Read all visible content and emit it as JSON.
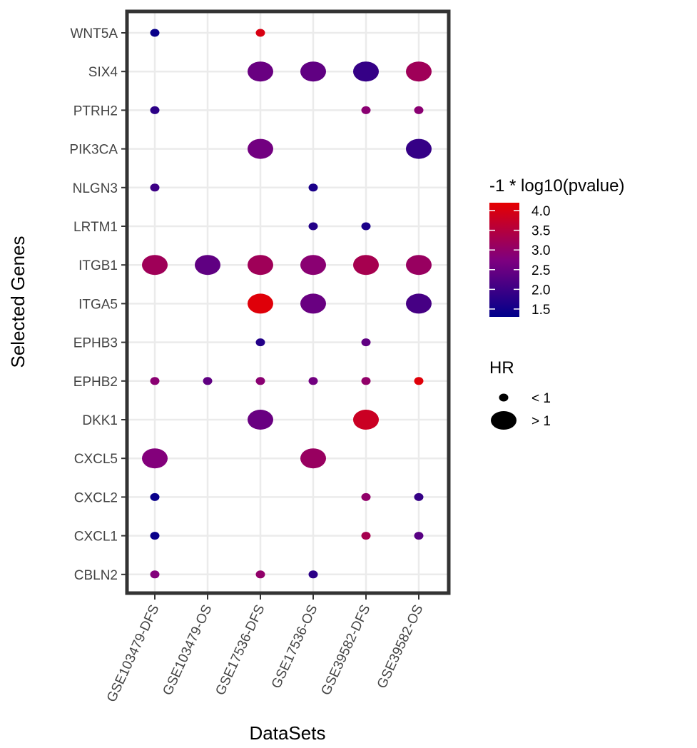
{
  "chart_data": {
    "type": "scatter",
    "subtype": "dot-plot",
    "xlabel": "DataSets",
    "ylabel": "Selected Genes",
    "datasets": [
      "GSE103479-DFS",
      "GSE103479-OS",
      "GSE17536-DFS",
      "GSE17536-OS",
      "GSE39582-DFS",
      "GSE39582-OS"
    ],
    "genes": [
      "WNT5A",
      "SIX4",
      "PTRH2",
      "PIK3CA",
      "NLGN3",
      "LRTM1",
      "ITGB1",
      "ITGA5",
      "EPHB3",
      "EPHB2",
      "DKK1",
      "CXCL5",
      "CXCL2",
      "CXCL1",
      "CBLN2"
    ],
    "color_legend": {
      "title": "-1 * log10(pvalue)",
      "ticks": [
        "4.0",
        "3.5",
        "3.0",
        "2.5",
        "2.0",
        "1.5"
      ],
      "range": [
        1.3,
        4.2
      ],
      "colors": [
        "#00008B",
        "#7F007F",
        "#E60000"
      ]
    },
    "size_legend": {
      "title": "HR",
      "items": [
        {
          "label": "< 1",
          "size": "small"
        },
        {
          "label": "> 1",
          "size": "large"
        }
      ]
    },
    "grid": true,
    "points": [
      {
        "gene": "WNT5A",
        "dataset": "GSE103479-DFS",
        "value": 1.4,
        "hr": "< 1"
      },
      {
        "gene": "WNT5A",
        "dataset": "GSE17536-DFS",
        "value": 4.0,
        "hr": "< 1"
      },
      {
        "gene": "SIX4",
        "dataset": "GSE17536-DFS",
        "value": 2.5,
        "hr": "> 1"
      },
      {
        "gene": "SIX4",
        "dataset": "GSE17536-OS",
        "value": 2.4,
        "hr": "> 1"
      },
      {
        "gene": "SIX4",
        "dataset": "GSE39582-DFS",
        "value": 1.9,
        "hr": "> 1"
      },
      {
        "gene": "SIX4",
        "dataset": "GSE39582-OS",
        "value": 3.2,
        "hr": "> 1"
      },
      {
        "gene": "PTRH2",
        "dataset": "GSE103479-DFS",
        "value": 1.8,
        "hr": "< 1"
      },
      {
        "gene": "PTRH2",
        "dataset": "GSE39582-DFS",
        "value": 2.9,
        "hr": "< 1"
      },
      {
        "gene": "PTRH2",
        "dataset": "GSE39582-OS",
        "value": 2.9,
        "hr": "< 1"
      },
      {
        "gene": "PIK3CA",
        "dataset": "GSE17536-DFS",
        "value": 2.6,
        "hr": "> 1"
      },
      {
        "gene": "PIK3CA",
        "dataset": "GSE39582-OS",
        "value": 1.9,
        "hr": "> 1"
      },
      {
        "gene": "NLGN3",
        "dataset": "GSE103479-DFS",
        "value": 2.0,
        "hr": "< 1"
      },
      {
        "gene": "NLGN3",
        "dataset": "GSE17536-OS",
        "value": 1.6,
        "hr": "< 1"
      },
      {
        "gene": "LRTM1",
        "dataset": "GSE17536-OS",
        "value": 1.7,
        "hr": "< 1"
      },
      {
        "gene": "LRTM1",
        "dataset": "GSE39582-DFS",
        "value": 1.6,
        "hr": "< 1"
      },
      {
        "gene": "ITGB1",
        "dataset": "GSE103479-DFS",
        "value": 3.2,
        "hr": "> 1"
      },
      {
        "gene": "ITGB1",
        "dataset": "GSE103479-OS",
        "value": 2.4,
        "hr": "> 1"
      },
      {
        "gene": "ITGB1",
        "dataset": "GSE17536-DFS",
        "value": 3.2,
        "hr": "> 1"
      },
      {
        "gene": "ITGB1",
        "dataset": "GSE17536-OS",
        "value": 2.9,
        "hr": "> 1"
      },
      {
        "gene": "ITGB1",
        "dataset": "GSE39582-DFS",
        "value": 3.3,
        "hr": "> 1"
      },
      {
        "gene": "ITGB1",
        "dataset": "GSE39582-OS",
        "value": 3.1,
        "hr": "> 1"
      },
      {
        "gene": "ITGA5",
        "dataset": "GSE17536-DFS",
        "value": 4.1,
        "hr": "> 1"
      },
      {
        "gene": "ITGA5",
        "dataset": "GSE17536-OS",
        "value": 2.5,
        "hr": "> 1"
      },
      {
        "gene": "ITGA5",
        "dataset": "GSE39582-OS",
        "value": 2.1,
        "hr": "> 1"
      },
      {
        "gene": "EPHB3",
        "dataset": "GSE17536-DFS",
        "value": 1.7,
        "hr": "< 1"
      },
      {
        "gene": "EPHB3",
        "dataset": "GSE39582-DFS",
        "value": 2.4,
        "hr": "< 1"
      },
      {
        "gene": "EPHB2",
        "dataset": "GSE103479-DFS",
        "value": 2.9,
        "hr": "< 1"
      },
      {
        "gene": "EPHB2",
        "dataset": "GSE103479-OS",
        "value": 2.4,
        "hr": "< 1"
      },
      {
        "gene": "EPHB2",
        "dataset": "GSE17536-DFS",
        "value": 2.9,
        "hr": "< 1"
      },
      {
        "gene": "EPHB2",
        "dataset": "GSE17536-OS",
        "value": 2.6,
        "hr": "< 1"
      },
      {
        "gene": "EPHB2",
        "dataset": "GSE39582-DFS",
        "value": 3.0,
        "hr": "< 1"
      },
      {
        "gene": "EPHB2",
        "dataset": "GSE39582-OS",
        "value": 4.1,
        "hr": "< 1"
      },
      {
        "gene": "DKK1",
        "dataset": "GSE17536-DFS",
        "value": 2.5,
        "hr": "> 1"
      },
      {
        "gene": "DKK1",
        "dataset": "GSE39582-DFS",
        "value": 3.8,
        "hr": "> 1"
      },
      {
        "gene": "CXCL5",
        "dataset": "GSE103479-DFS",
        "value": 2.8,
        "hr": "> 1"
      },
      {
        "gene": "CXCL5",
        "dataset": "GSE17536-OS",
        "value": 3.1,
        "hr": "> 1"
      },
      {
        "gene": "CXCL2",
        "dataset": "GSE103479-DFS",
        "value": 1.4,
        "hr": "< 1"
      },
      {
        "gene": "CXCL2",
        "dataset": "GSE39582-DFS",
        "value": 3.0,
        "hr": "< 1"
      },
      {
        "gene": "CXCL2",
        "dataset": "GSE39582-OS",
        "value": 1.9,
        "hr": "< 1"
      },
      {
        "gene": "CXCL1",
        "dataset": "GSE103479-DFS",
        "value": 1.4,
        "hr": "< 1"
      },
      {
        "gene": "CXCL1",
        "dataset": "GSE39582-DFS",
        "value": 3.3,
        "hr": "< 1"
      },
      {
        "gene": "CXCL1",
        "dataset": "GSE39582-OS",
        "value": 2.3,
        "hr": "< 1"
      },
      {
        "gene": "CBLN2",
        "dataset": "GSE103479-DFS",
        "value": 2.8,
        "hr": "< 1"
      },
      {
        "gene": "CBLN2",
        "dataset": "GSE17536-DFS",
        "value": 3.0,
        "hr": "< 1"
      },
      {
        "gene": "CBLN2",
        "dataset": "GSE17536-OS",
        "value": 1.8,
        "hr": "< 1"
      }
    ]
  }
}
